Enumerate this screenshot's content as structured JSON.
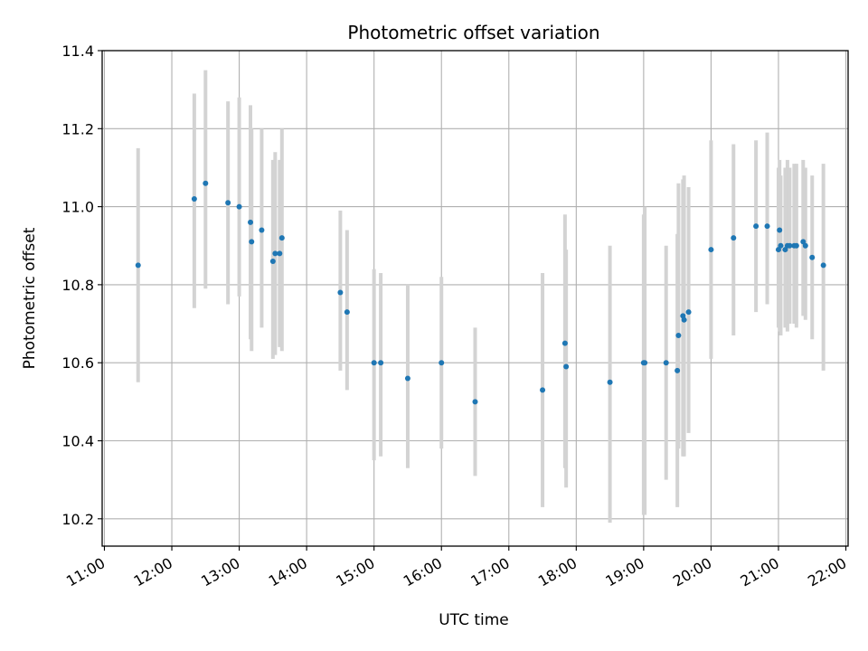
{
  "chart_data": {
    "type": "scatter",
    "title": "Photometric offset variation",
    "xlabel": "UTC time",
    "ylabel": "Photometric offset",
    "xlim": [
      "10:58",
      "22:02"
    ],
    "ylim": [
      10.13,
      11.4
    ],
    "x_ticks": [
      "11:00",
      "12:00",
      "13:00",
      "14:00",
      "15:00",
      "16:00",
      "17:00",
      "18:00",
      "19:00",
      "20:00",
      "21:00",
      "22:00"
    ],
    "y_ticks": [
      "10.2",
      "10.4",
      "10.6",
      "10.8",
      "11.0",
      "11.2",
      "11.4"
    ],
    "grid": true,
    "colors": {
      "point": "#1f77b4",
      "errorbar": "#d3d3d3",
      "grid": "#b0b0b0"
    },
    "series": [
      {
        "x": [
          "11:30",
          "12:20",
          "12:30",
          "12:50",
          "13:00",
          "13:10",
          "13:11",
          "13:20",
          "13:30",
          "13:32",
          "13:36",
          "13:38",
          "14:30",
          "14:36",
          "15:00",
          "15:06",
          "15:30",
          "16:00",
          "16:30",
          "17:30",
          "17:50",
          "17:51",
          "18:30",
          "19:00",
          "19:01",
          "19:20",
          "19:30",
          "19:31",
          "19:35",
          "19:36",
          "19:40",
          "20:00",
          "20:20",
          "20:40",
          "20:50",
          "21:00",
          "21:01",
          "21:02",
          "21:06",
          "21:08",
          "21:10",
          "21:14",
          "21:16",
          "21:22",
          "21:24",
          "21:30",
          "21:40"
        ],
        "y": [
          10.85,
          11.02,
          11.06,
          11.01,
          11.0,
          10.96,
          10.91,
          10.94,
          10.86,
          10.88,
          10.88,
          10.92,
          10.78,
          10.73,
          10.6,
          10.6,
          10.56,
          10.6,
          10.5,
          10.53,
          10.65,
          10.59,
          10.55,
          10.6,
          10.6,
          10.6,
          10.58,
          10.67,
          10.72,
          10.71,
          10.73,
          10.89,
          10.92,
          10.95,
          10.95,
          10.89,
          10.94,
          10.9,
          10.89,
          10.9,
          10.9,
          10.9,
          10.9,
          10.91,
          10.9,
          10.87,
          10.85
        ],
        "yerr_low": [
          10.55,
          10.74,
          10.79,
          10.75,
          10.77,
          10.66,
          10.63,
          10.69,
          10.61,
          10.62,
          10.64,
          10.63,
          10.58,
          10.53,
          10.35,
          10.36,
          10.33,
          10.38,
          10.31,
          10.23,
          10.33,
          10.28,
          10.19,
          10.21,
          10.21,
          10.3,
          10.23,
          10.38,
          10.36,
          10.36,
          10.42,
          10.61,
          10.67,
          10.73,
          10.75,
          10.69,
          10.68,
          10.67,
          10.69,
          10.68,
          10.7,
          10.7,
          10.69,
          10.72,
          10.71,
          10.66,
          10.58
        ],
        "yerr_high": [
          11.15,
          11.29,
          11.35,
          11.27,
          11.28,
          11.26,
          11.2,
          11.2,
          11.12,
          11.14,
          11.12,
          11.2,
          10.99,
          10.94,
          10.84,
          10.83,
          10.8,
          10.82,
          10.69,
          10.83,
          10.98,
          10.89,
          10.9,
          10.98,
          11.0,
          10.9,
          10.93,
          11.06,
          11.07,
          11.08,
          11.05,
          11.17,
          11.16,
          11.17,
          11.19,
          11.1,
          11.12,
          11.08,
          11.1,
          11.12,
          11.1,
          11.11,
          11.11,
          11.12,
          11.1,
          11.08,
          11.11
        ]
      }
    ]
  }
}
